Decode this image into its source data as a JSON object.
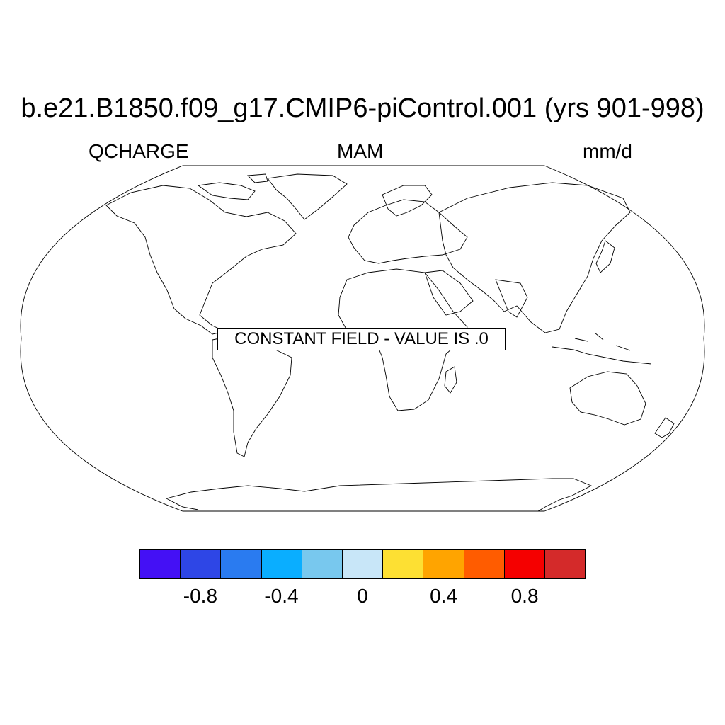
{
  "title": "b.e21.B1850.f09_g17.CMIP6-piControl.001 (yrs 901-998)",
  "left_label": "QCHARGE",
  "center_label": "MAM",
  "right_label": "mm/d",
  "notice": "CONSTANT FIELD - VALUE IS .0",
  "projection": "robinson",
  "colorbar": {
    "colors": [
      "#4410f5",
      "#2e46e6",
      "#2a7bf0",
      "#0aaeff",
      "#78c8ee",
      "#c8e6f8",
      "#fde033",
      "#ffa400",
      "#ff5c00",
      "#f50000",
      "#d42a2a"
    ],
    "tick_labels": [
      "-0.8",
      "-0.4",
      "0",
      "0.4",
      "0.8"
    ],
    "tick_values": [
      -0.8,
      -0.4,
      0,
      0.4,
      0.8
    ],
    "range": [
      -1.1,
      1.1
    ]
  }
}
